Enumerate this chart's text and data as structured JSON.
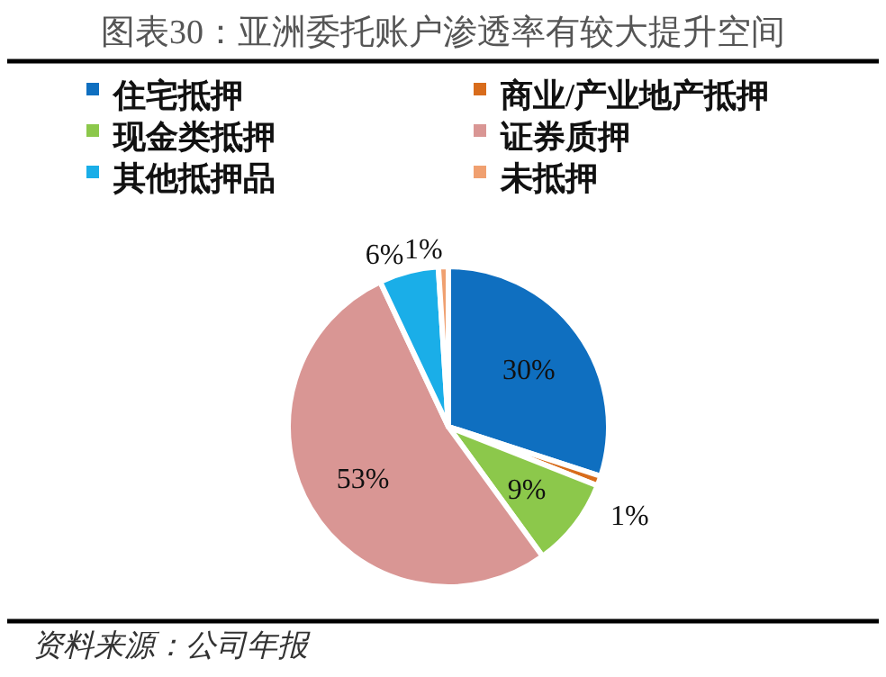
{
  "chart_data": {
    "type": "pie",
    "title": "图表30：亚洲委托账户渗透率有较大提升空间",
    "categories": [
      "住宅抵押",
      "商业/产业地产抵押",
      "现金类抵押",
      "证券质押",
      "其他抵押品",
      "未抵押"
    ],
    "values": [
      30,
      1,
      9,
      53,
      6,
      1
    ],
    "colors": [
      "#0f6fc0",
      "#d86c1c",
      "#8cc84b",
      "#d99694",
      "#1aaee8",
      "#f0a070"
    ],
    "value_labels": [
      "30%",
      "1%",
      "9%",
      "53%",
      "6%",
      "1%"
    ],
    "legend": "top",
    "annotations": [
      "资料来源：公司年报"
    ]
  }
}
